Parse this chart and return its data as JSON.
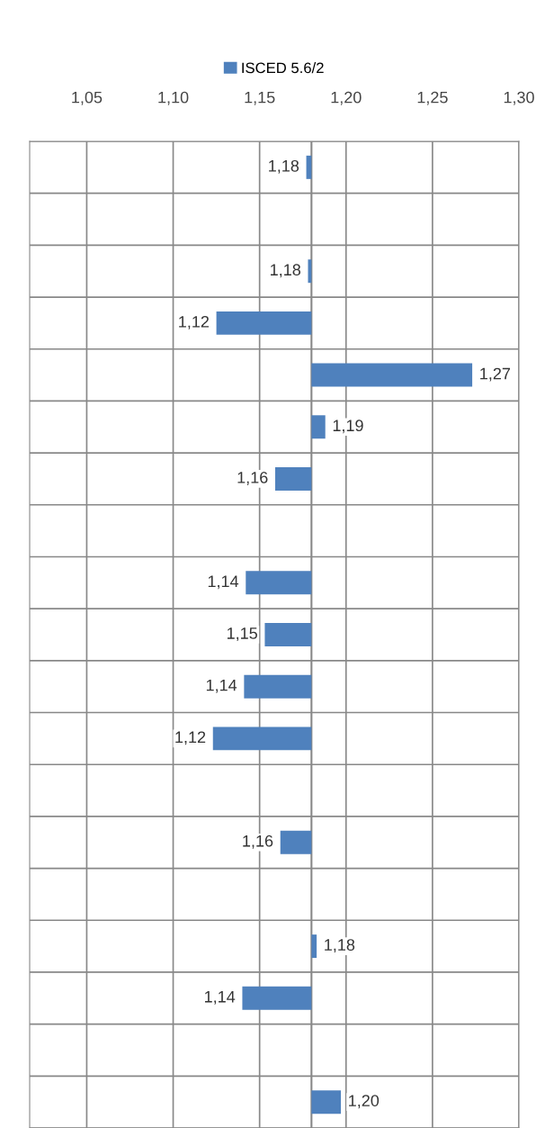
{
  "chart_data": {
    "type": "bar",
    "orientation": "horizontal",
    "categories": [
      null,
      null,
      null,
      null,
      null,
      null,
      null,
      null,
      null,
      null,
      null,
      null,
      null,
      null,
      null,
      null,
      null,
      null,
      null
    ],
    "series": [
      {
        "name": "ISCED 5.6/2",
        "color": "#4f81bd",
        "base": [
          1.18,
          null,
          1.18,
          1.18,
          1.18,
          1.18,
          1.18,
          null,
          1.18,
          1.18,
          1.18,
          1.18,
          null,
          1.18,
          null,
          1.18,
          1.18,
          null,
          1.18
        ],
        "values": [
          -0.003,
          null,
          -0.002,
          -0.055,
          0.093,
          0.008,
          -0.021,
          null,
          -0.038,
          -0.027,
          -0.039,
          -0.057,
          null,
          -0.018,
          null,
          0.003,
          -0.04,
          null,
          0.017
        ],
        "value_labels": [
          "1,18",
          null,
          "1,18",
          "1,12",
          "1,27",
          "1,19",
          "1,16",
          null,
          "1,14",
          "1,15",
          "1,14",
          "1,12",
          null,
          "1,16",
          null,
          "1,18",
          "1,14",
          null,
          "1,20"
        ]
      }
    ],
    "xlim": [
      1.017,
      1.3
    ],
    "xticks": [
      {
        "value": 1.05,
        "label": "1,05"
      },
      {
        "value": 1.1,
        "label": "1,10"
      },
      {
        "value": 1.15,
        "label": "1,15"
      },
      {
        "value": 1.2,
        "label": "1,20"
      },
      {
        "value": 1.25,
        "label": "1,25"
      },
      {
        "value": 1.3,
        "label": "1,30"
      }
    ],
    "ref_lines": [
      {
        "axis": "x",
        "value": 1.18,
        "color": "#888888"
      }
    ],
    "grid": true,
    "legend": "top"
  }
}
